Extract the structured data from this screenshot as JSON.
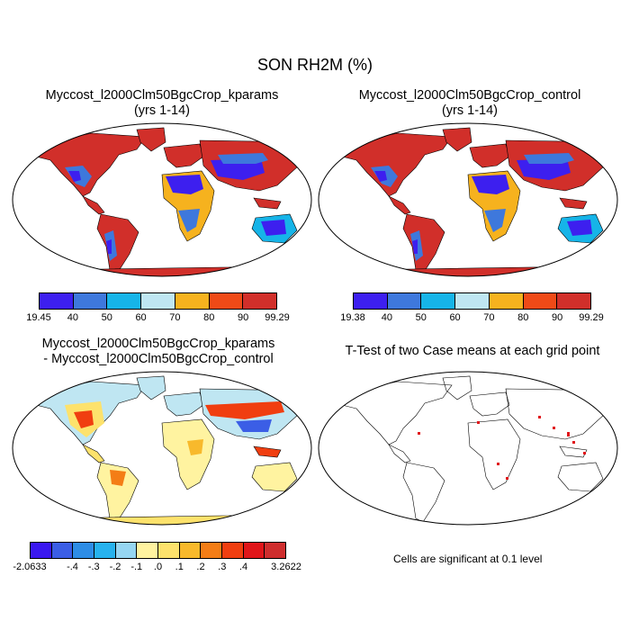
{
  "title": "SON RH2M (%)",
  "panels": [
    {
      "title_line1": "Myccost_l2000Clm50BgcCrop_kparams",
      "title_line2": "(yrs 1-14)"
    },
    {
      "title_line1": "Myccost_l2000Clm50BgcCrop_control",
      "title_line2": "(yrs 1-14)"
    },
    {
      "title_line1": "Myccost_l2000Clm50BgcCrop_kparams",
      "title_line2": "- Myccost_l2000Clm50BgcCrop_control"
    },
    {
      "title_line1": "T-Test of two Case means at each grid point",
      "title_line2": ""
    }
  ],
  "colorbar1": {
    "colors": [
      "#3d1fef",
      "#3e78dc",
      "#16b4e8",
      "#bfe6f2",
      "#f6b21e",
      "#ef4a17",
      "#d12f2a"
    ],
    "ticks": [
      "19.45",
      "40",
      "50",
      "60",
      "70",
      "80",
      "90",
      "99.29"
    ]
  },
  "colorbar2": {
    "colors": [
      "#3d1fef",
      "#3e78dc",
      "#16b4e8",
      "#bfe6f2",
      "#f6b21e",
      "#ef4a17",
      "#d12f2a"
    ],
    "ticks": [
      "19.38",
      "40",
      "50",
      "60",
      "70",
      "80",
      "90",
      "99.29"
    ]
  },
  "colorbar3": {
    "colors": [
      "#3a18f0",
      "#3b5ee6",
      "#2e8de6",
      "#27b2ee",
      "#96d6f2",
      "#fff3a0",
      "#fde26c",
      "#f8b92c",
      "#f47d16",
      "#f03e10",
      "#e0161a",
      "#cf2e2e"
    ],
    "ticks": [
      "-2.0633",
      "-.4",
      "-.3",
      "-.2",
      "-.1",
      ".0",
      ".1",
      ".2",
      ".3",
      ".4",
      "3.2622"
    ]
  },
  "significance_note": "Cells are significant at 0.1 level",
  "colors": {
    "map_outline": "#000000",
    "humid": "#d12f2a",
    "dry": "#3d1fef",
    "diff_bg": "#bfe6f2",
    "diff_pos": "#f6b21e",
    "significant": "#e0161a"
  }
}
